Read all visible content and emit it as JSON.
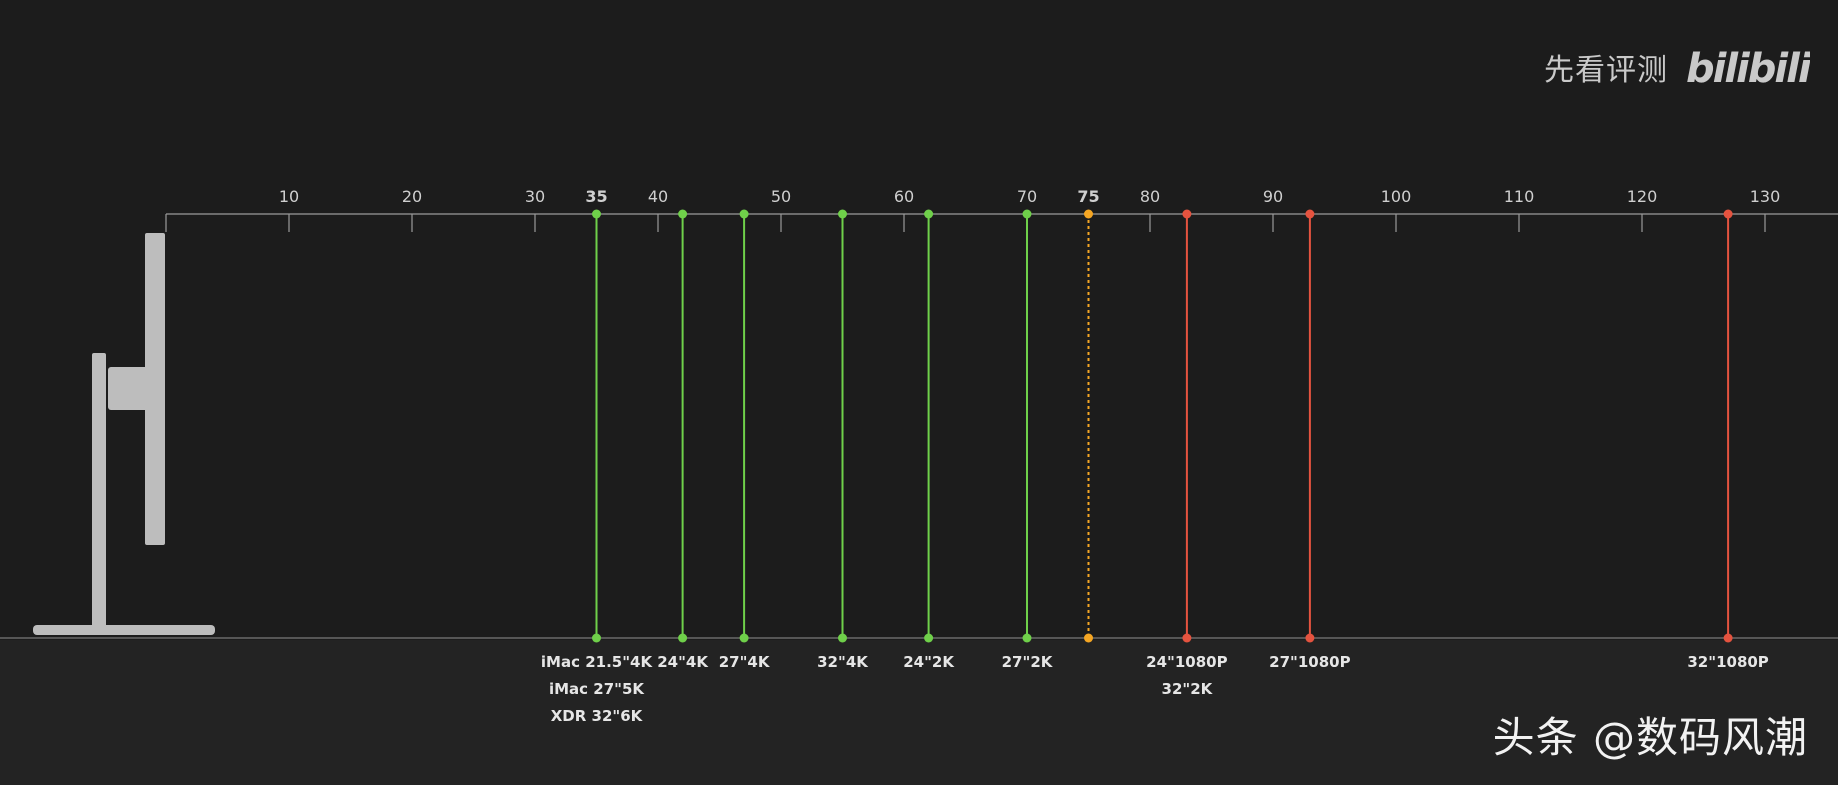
{
  "header": {
    "source_text": "先看评测",
    "logo": {
      "text": "bilibili",
      "icon": "bilibili-logo-icon"
    }
  },
  "watermark": {
    "text": "头条 @数码风潮"
  },
  "colors": {
    "background": "#1c1c1c",
    "axis": "#9a9a9a",
    "green": "#6fd04a",
    "orange": "#f5a623",
    "red": "#e5533f",
    "monitor": "#bdbdbd"
  },
  "icons": {
    "monitor": "monitor-side-view-icon"
  },
  "chart_data": {
    "type": "line",
    "xlim": [
      0,
      135
    ],
    "ticks": [
      10,
      20,
      30,
      35,
      40,
      50,
      60,
      70,
      75,
      80,
      90,
      100,
      110,
      120,
      130
    ],
    "highlight_ticks": [
      {
        "value": 35,
        "color": "green"
      },
      {
        "value": 75,
        "color": "orange"
      }
    ],
    "markers": [
      {
        "x": 35,
        "color": "green",
        "style": "solid",
        "labels": [
          "iMac 21.5\"4K",
          "iMac 27\"5K",
          "XDR 32\"6K"
        ]
      },
      {
        "x": 42,
        "color": "green",
        "style": "solid",
        "labels": [
          "24\"4K"
        ]
      },
      {
        "x": 47,
        "color": "green",
        "style": "solid",
        "labels": [
          "27\"4K"
        ]
      },
      {
        "x": 55,
        "color": "green",
        "style": "solid",
        "labels": [
          "32\"4K"
        ]
      },
      {
        "x": 62,
        "color": "green",
        "style": "solid",
        "labels": [
          "24\"2K"
        ]
      },
      {
        "x": 70,
        "color": "green",
        "style": "solid",
        "labels": [
          "27\"2K"
        ]
      },
      {
        "x": 75,
        "color": "orange",
        "style": "dotted",
        "labels": []
      },
      {
        "x": 83,
        "color": "red",
        "style": "solid",
        "labels": [
          "24\"1080P",
          "32\"2K"
        ]
      },
      {
        "x": 93,
        "color": "red",
        "style": "solid",
        "labels": [
          "27\"1080P"
        ]
      },
      {
        "x": 127,
        "color": "red",
        "style": "solid",
        "labels": [
          "32\"1080P"
        ]
      }
    ]
  }
}
